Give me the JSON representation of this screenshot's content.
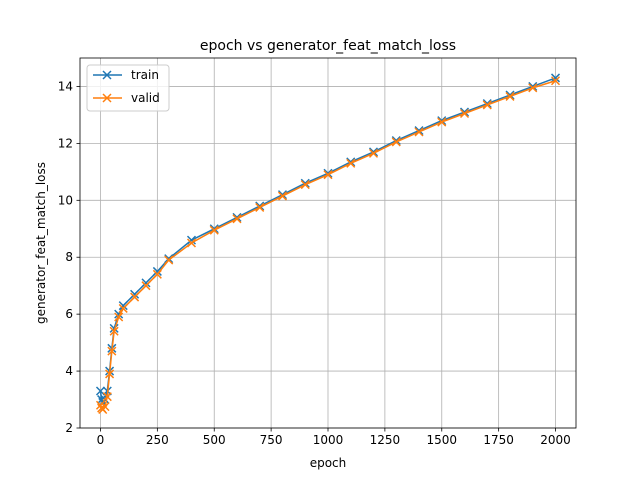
{
  "chart_data": {
    "type": "line",
    "title": "epoch vs generator_feat_match_loss",
    "xlabel": "epoch",
    "ylabel": "generator_feat_match_loss",
    "xlim": [
      -90,
      2090
    ],
    "ylim": [
      2.0,
      15.0
    ],
    "xticks": [
      0,
      250,
      500,
      750,
      1000,
      1250,
      1500,
      1750,
      2000
    ],
    "yticks": [
      2,
      4,
      6,
      8,
      10,
      12,
      14
    ],
    "grid": true,
    "legend_position": "upper-left",
    "marker": "x",
    "series": [
      {
        "name": "train",
        "color": "#1f77b4",
        "x": [
          0,
          5,
          10,
          20,
          30,
          40,
          50,
          60,
          80,
          100,
          150,
          200,
          250,
          300,
          400,
          500,
          600,
          700,
          800,
          900,
          1000,
          1100,
          1200,
          1300,
          1400,
          1500,
          1600,
          1700,
          1800,
          1900,
          2000
        ],
        "y": [
          3.3,
          3.0,
          2.9,
          3.0,
          3.3,
          4.0,
          4.8,
          5.5,
          6.0,
          6.3,
          6.7,
          7.1,
          7.5,
          7.95,
          8.6,
          9.0,
          9.4,
          9.8,
          10.2,
          10.6,
          10.95,
          11.35,
          11.7,
          12.1,
          12.45,
          12.8,
          13.1,
          13.4,
          13.7,
          14.0,
          14.3
        ]
      },
      {
        "name": "valid",
        "color": "#ff7f0e",
        "x": [
          0,
          5,
          10,
          20,
          30,
          40,
          50,
          60,
          80,
          100,
          150,
          200,
          250,
          300,
          400,
          500,
          600,
          700,
          800,
          900,
          1000,
          1100,
          1200,
          1300,
          1400,
          1500,
          1600,
          1700,
          1800,
          1900,
          2000
        ],
        "y": [
          2.8,
          2.7,
          2.65,
          2.75,
          3.1,
          3.9,
          4.7,
          5.4,
          5.9,
          6.2,
          6.6,
          7.0,
          7.4,
          7.9,
          8.5,
          8.95,
          9.35,
          9.75,
          10.15,
          10.55,
          10.9,
          11.3,
          11.65,
          12.05,
          12.4,
          12.75,
          13.05,
          13.35,
          13.65,
          13.95,
          14.2
        ]
      }
    ]
  }
}
